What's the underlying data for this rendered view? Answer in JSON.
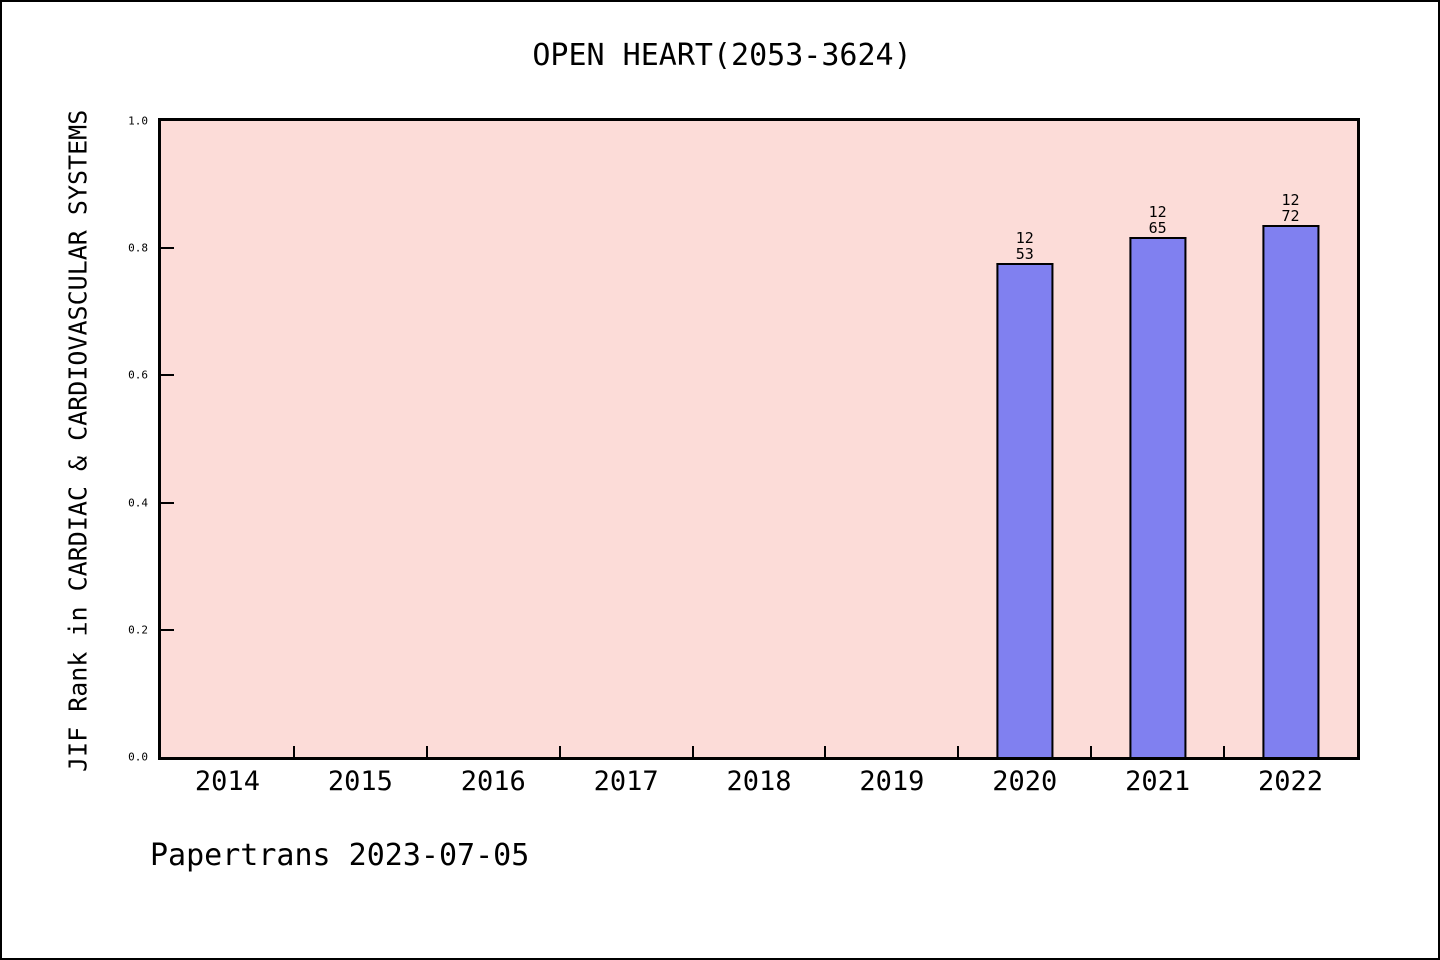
{
  "figure": {
    "title": "OPEN HEART(2053-3624)",
    "footer": "Papertrans 2023-07-05"
  },
  "chart_data": {
    "type": "bar",
    "title": "OPEN HEART(2053-3624)",
    "xlabel": "",
    "ylabel": "JIF Rank in CARDIAC & CARDIOVASCULAR SYSTEMS",
    "ylim": [
      0.0,
      1.0
    ],
    "yticks": [
      0.0,
      0.2,
      0.4,
      0.6,
      0.8,
      1.0
    ],
    "ytick_labels": [
      "0.0",
      "0.2",
      "0.4",
      "0.6",
      "0.8",
      "1.0"
    ],
    "categories": [
      "2014",
      "2015",
      "2016",
      "2017",
      "2018",
      "2019",
      "2020",
      "2021",
      "2022"
    ],
    "bars": [
      {
        "category": "2020",
        "rank": "12",
        "total": "53",
        "value": 0.774
      },
      {
        "category": "2021",
        "rank": "12",
        "total": "65",
        "value": 0.815
      },
      {
        "category": "2022",
        "rank": "12",
        "total": "72",
        "value": 0.833
      }
    ],
    "grid": false,
    "legend_position": "none",
    "colors": {
      "plot_bg": "#fcdcd8",
      "bar_fill": "#8080f0",
      "bar_edge": "#000000",
      "axis": "#000000",
      "text": "#000000",
      "page_bg": "#ffffff"
    }
  }
}
